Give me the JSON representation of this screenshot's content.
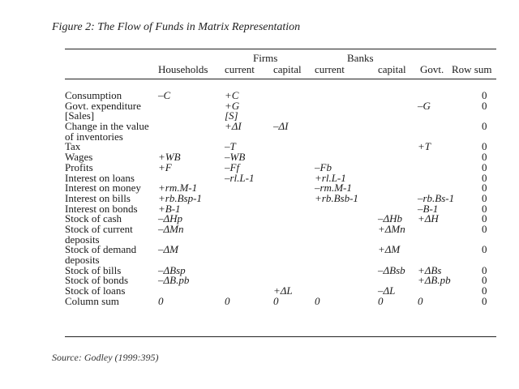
{
  "caption": "Figure 2: The Flow of Funds in Matrix Representation",
  "source": "Source: Godley (1999:395)",
  "header": {
    "groups": {
      "firms": "Firms",
      "banks": "Banks"
    },
    "columns": {
      "households": "Households",
      "firms_current": "current",
      "firms_capital": "capital",
      "banks_current": "current",
      "banks_capital": "capital",
      "govt": "Govt.",
      "row_sum": "Row sum"
    }
  },
  "rows": [
    {
      "label": "Consumption",
      "households": "–C",
      "firms_current": "+C",
      "firms_capital": "",
      "banks_current": "",
      "banks_capital": "",
      "govt": "",
      "row_sum": "0"
    },
    {
      "label": "Govt. expenditure",
      "households": "",
      "firms_current": "+G",
      "firms_capital": "",
      "banks_current": "",
      "banks_capital": "",
      "govt": "–G",
      "row_sum": "0"
    },
    {
      "label": "[Sales]",
      "households": "",
      "firms_current": "[S]",
      "firms_capital": "",
      "banks_current": "",
      "banks_capital": "",
      "govt": "",
      "row_sum": ""
    },
    {
      "label": "Change in the value",
      "households": "",
      "firms_current": "+ΔI",
      "firms_capital": "–ΔI",
      "banks_current": "",
      "banks_capital": "",
      "govt": "",
      "row_sum": "0"
    },
    {
      "label": "of inventories",
      "households": "",
      "firms_current": "",
      "firms_capital": "",
      "banks_current": "",
      "banks_capital": "",
      "govt": "",
      "row_sum": ""
    },
    {
      "label": "Tax",
      "households": "",
      "firms_current": "–T",
      "firms_capital": "",
      "banks_current": "",
      "banks_capital": "",
      "govt": "+T",
      "row_sum": "0"
    },
    {
      "label": "Wages",
      "households": "+WB",
      "firms_current": "–WB",
      "firms_capital": "",
      "banks_current": "",
      "banks_capital": "",
      "govt": "",
      "row_sum": "0"
    },
    {
      "label": "Profits",
      "households": "+F",
      "firms_current": "–Ff",
      "firms_capital": "",
      "banks_current": "–Fb",
      "banks_capital": "",
      "govt": "",
      "row_sum": "0"
    },
    {
      "label": "Interest on loans",
      "households": "",
      "firms_current": "–rl.L-1",
      "firms_capital": "",
      "banks_current": "+rl.L-1",
      "banks_capital": "",
      "govt": "",
      "row_sum": "0"
    },
    {
      "label": "Interest on money",
      "households": "+rm.M-1",
      "firms_current": "",
      "firms_capital": "",
      "banks_current": "–rm.M-1",
      "banks_capital": "",
      "govt": "",
      "row_sum": "0"
    },
    {
      "label": "Interest on bills",
      "households": "+rb.Bsp-1",
      "firms_current": "",
      "firms_capital": "",
      "banks_current": "+rb.Bsb-1",
      "banks_capital": "",
      "govt": "–rb.Bs-1",
      "row_sum": "0"
    },
    {
      "label": "Interest on bonds",
      "households": "+B-1",
      "firms_current": "",
      "firms_capital": "",
      "banks_current": "",
      "banks_capital": "",
      "govt": "–B-1",
      "row_sum": "0"
    },
    {
      "label": "Stock of cash",
      "households": "–ΔHp",
      "firms_current": "",
      "firms_capital": "",
      "banks_current": "",
      "banks_capital": "–ΔHb",
      "govt": "+ΔH",
      "row_sum": "0"
    },
    {
      "label": "Stock of current",
      "households": "–ΔMn",
      "firms_current": "",
      "firms_capital": "",
      "banks_current": "",
      "banks_capital": "+ΔMn",
      "govt": "",
      "row_sum": "0"
    },
    {
      "label": "deposits",
      "households": "",
      "firms_current": "",
      "firms_capital": "",
      "banks_current": "",
      "banks_capital": "",
      "govt": "",
      "row_sum": ""
    },
    {
      "label": "Stock of demand",
      "households": "–ΔM",
      "firms_current": "",
      "firms_capital": "",
      "banks_current": "",
      "banks_capital": "+ΔM",
      "govt": "",
      "row_sum": "0"
    },
    {
      "label": "deposits",
      "households": "",
      "firms_current": "",
      "firms_capital": "",
      "banks_current": "",
      "banks_capital": "",
      "govt": "",
      "row_sum": ""
    },
    {
      "label": "Stock of bills",
      "households": "–ΔBsp",
      "firms_current": "",
      "firms_capital": "",
      "banks_current": "",
      "banks_capital": "–ΔBsb",
      "govt": "+ΔBs",
      "row_sum": "0"
    },
    {
      "label": "Stock of bonds",
      "households": "–ΔB.pb",
      "firms_current": "",
      "firms_capital": "",
      "banks_current": "",
      "banks_capital": "",
      "govt": "+ΔB.pb",
      "row_sum": "0"
    },
    {
      "label": "Stock of loans",
      "households": "",
      "firms_current": "",
      "firms_capital": "+ΔL",
      "banks_current": "",
      "banks_capital": "–ΔL",
      "govt": "",
      "row_sum": "0"
    },
    {
      "label": "Column sum",
      "households": "0",
      "firms_current": "0",
      "firms_capital": "0",
      "banks_current": "0",
      "banks_capital": "0",
      "govt": "0",
      "row_sum": "0"
    }
  ]
}
